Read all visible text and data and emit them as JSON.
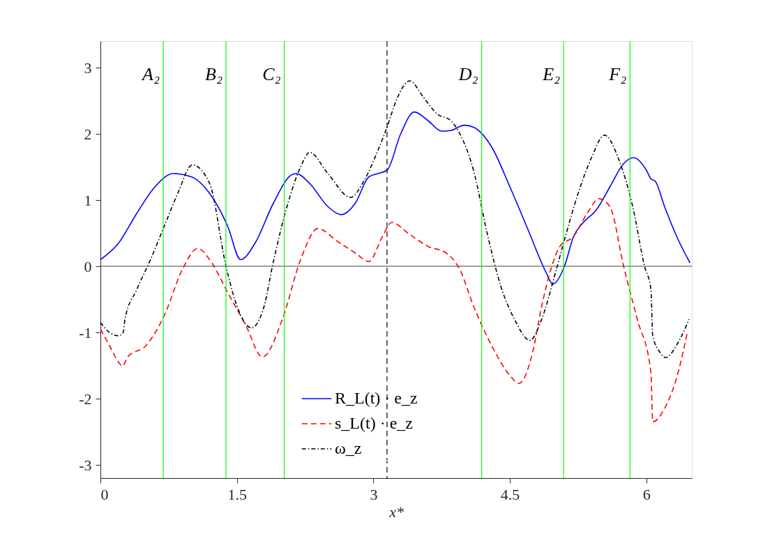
{
  "chart_data": {
    "type": "line",
    "xlabel": "x*",
    "xlim": [
      0,
      6.5
    ],
    "ylim": [
      -3.2,
      3.4
    ],
    "xticks": [
      0,
      1.5,
      3,
      4.5,
      6
    ],
    "yticks": [
      -3,
      -2,
      -1,
      0,
      1,
      2,
      3
    ],
    "grid": false,
    "legend": "bottom",
    "marker": "none",
    "series": [
      {
        "name": "R_L(t) · e_z",
        "color": "#0000ff",
        "line_style": "solid",
        "x": [
          0,
          0.2,
          0.4,
          0.6,
          0.8,
          1.0,
          1.2,
          1.4,
          1.54,
          1.7,
          1.9,
          2.1,
          2.15,
          2.3,
          2.5,
          2.65,
          2.8,
          2.95,
          3.05,
          3.15,
          3.3,
          3.45,
          3.6,
          3.75,
          3.85,
          4.0,
          4.1,
          4.3,
          4.5,
          4.7,
          4.9,
          4.97,
          5.1,
          5.2,
          5.3,
          5.45,
          5.6,
          5.75,
          5.86,
          6.0,
          6.05,
          6.1,
          6.2,
          6.35,
          6.48
        ],
        "values": [
          0.1,
          0.35,
          0.8,
          1.2,
          1.4,
          1.35,
          1.1,
          0.6,
          0.1,
          0.35,
          0.95,
          1.38,
          1.4,
          1.25,
          0.9,
          0.78,
          0.95,
          1.35,
          1.4,
          1.45,
          2.0,
          2.33,
          2.2,
          2.04,
          2.05,
          2.13,
          2.1,
          1.8,
          1.2,
          0.55,
          -0.1,
          -0.27,
          0.0,
          0.45,
          0.65,
          0.85,
          1.2,
          1.55,
          1.64,
          1.45,
          1.32,
          1.28,
          0.9,
          0.4,
          0.05
        ]
      },
      {
        "name": "s_L(t) · e_z",
        "color": "#ff0000",
        "line_style": "dashed",
        "x": [
          0,
          0.1,
          0.2,
          0.24,
          0.3,
          0.5,
          0.7,
          0.9,
          1.07,
          1.2,
          1.4,
          1.6,
          1.78,
          2.0,
          2.2,
          2.39,
          2.6,
          2.8,
          2.95,
          3.1,
          3.2,
          3.4,
          3.6,
          3.8,
          3.95,
          4.1,
          4.3,
          4.5,
          4.6,
          4.75,
          4.85,
          4.95,
          5.05,
          5.2,
          5.35,
          5.48,
          5.6,
          5.75,
          5.9,
          6.05,
          6.07,
          6.2,
          6.35,
          6.45
        ],
        "values": [
          -0.95,
          -1.2,
          -1.45,
          -1.51,
          -1.37,
          -1.2,
          -0.75,
          -0.05,
          0.27,
          0.1,
          -0.4,
          -0.9,
          -1.37,
          -0.8,
          0.1,
          0.57,
          0.38,
          0.2,
          0.07,
          0.45,
          0.66,
          0.48,
          0.3,
          0.2,
          -0.05,
          -0.6,
          -1.2,
          -1.65,
          -1.77,
          -1.3,
          -0.6,
          -0.05,
          0.3,
          0.45,
          0.8,
          1.02,
          0.9,
          0.0,
          -0.8,
          -1.6,
          -2.35,
          -2.15,
          -1.6,
          -1.0
        ]
      },
      {
        "name": "ω_z",
        "color": "#000000",
        "line_style": "dashdot",
        "x": [
          0,
          0.1,
          0.2,
          0.25,
          0.27,
          0.4,
          0.55,
          0.7,
          0.85,
          1.01,
          1.2,
          1.38,
          1.5,
          1.66,
          1.8,
          1.89,
          2.05,
          2.2,
          2.3,
          2.5,
          2.75,
          2.9,
          3.05,
          3.15,
          3.25,
          3.4,
          3.55,
          3.7,
          3.85,
          3.95,
          4.1,
          4.25,
          4.4,
          4.55,
          4.72,
          4.85,
          5.0,
          5.1,
          5.25,
          5.4,
          5.54,
          5.7,
          5.85,
          5.98,
          6.05,
          6.07,
          6.15,
          6.21,
          6.35,
          6.47
        ],
        "values": [
          -0.85,
          -1.0,
          -1.05,
          -1.0,
          -0.8,
          -0.35,
          0.1,
          0.6,
          1.1,
          1.53,
          1.25,
          0.0,
          -0.6,
          -0.93,
          -0.6,
          0.0,
          0.9,
          1.5,
          1.72,
          1.4,
          1.04,
          1.3,
          1.75,
          2.1,
          2.5,
          2.8,
          2.55,
          2.3,
          2.2,
          2.0,
          1.45,
          0.5,
          -0.3,
          -0.8,
          -1.12,
          -0.8,
          -0.1,
          0.4,
          1.1,
          1.65,
          1.98,
          1.6,
          0.9,
          0.0,
          -0.35,
          -1.05,
          -1.3,
          -1.38,
          -1.15,
          -0.8
        ]
      }
    ],
    "ref_lines": [
      {
        "axis": "y",
        "value": 0,
        "color": "#404040",
        "line_style": "solid"
      },
      {
        "axis": "x",
        "value": 0.69,
        "label": "A₂",
        "color": "#00ff00",
        "line_style": "solid"
      },
      {
        "axis": "x",
        "value": 1.38,
        "label": "B₂",
        "color": "#00ff00",
        "line_style": "solid"
      },
      {
        "axis": "x",
        "value": 2.02,
        "label": "C₂",
        "color": "#00ff00",
        "line_style": "solid"
      },
      {
        "axis": "x",
        "value": 3.15,
        "color": "#000000",
        "line_style": "dashed"
      },
      {
        "axis": "x",
        "value": 4.19,
        "label": "D₂",
        "color": "#00ff00",
        "line_style": "solid"
      },
      {
        "axis": "x",
        "value": 5.09,
        "label": "E₂",
        "color": "#00ff00",
        "line_style": "solid"
      },
      {
        "axis": "x",
        "value": 5.82,
        "label": "F₂",
        "color": "#00ff00",
        "line_style": "solid"
      }
    ]
  }
}
